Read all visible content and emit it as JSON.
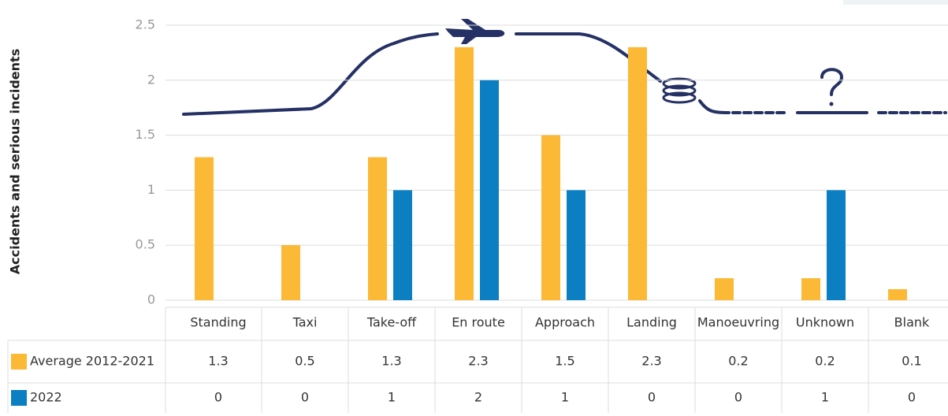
{
  "chart_data": {
    "type": "bar",
    "y_label": "Accidents and serious incidents",
    "categories": [
      "Standing",
      "Taxi",
      "Take-off",
      "En route",
      "Approach",
      "Landing",
      "Manoeuvring",
      "Unknown",
      "Blank"
    ],
    "series": [
      {
        "name": "Average 2012-2021",
        "color": "#fbb935",
        "values": [
          1.3,
          0.5,
          1.3,
          2.3,
          1.5,
          2.3,
          0.2,
          0.2,
          0.1
        ]
      },
      {
        "name": "2022",
        "color": "#0b7fc1",
        "values": [
          0,
          0,
          1,
          2,
          1,
          0,
          0,
          1,
          0
        ]
      }
    ],
    "ylim": [
      0,
      2.5
    ],
    "yticks": [
      0,
      0.5,
      1,
      1.5,
      2,
      2.5
    ],
    "grid": true
  }
}
